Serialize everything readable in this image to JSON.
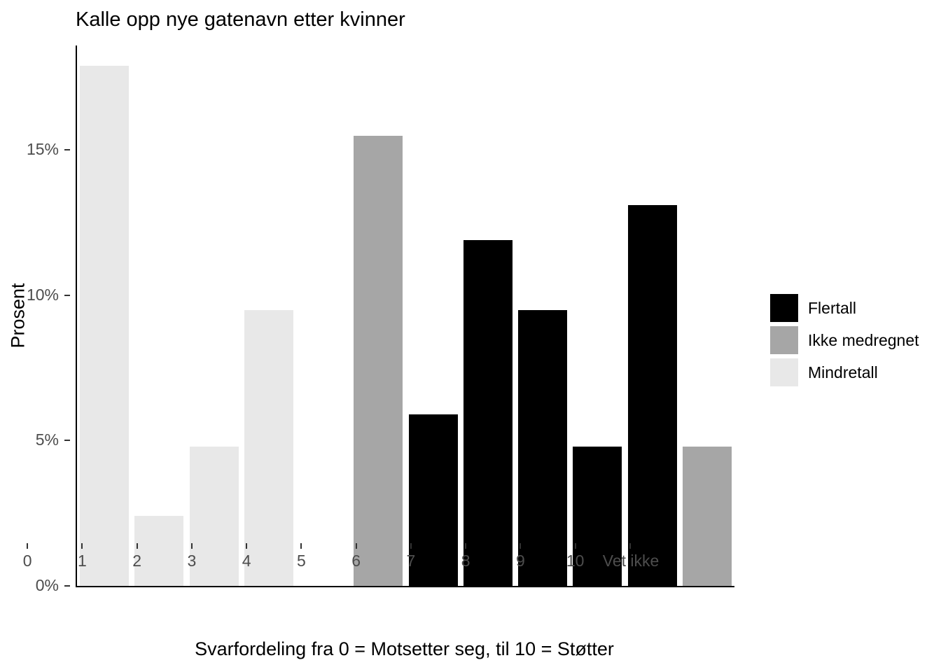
{
  "chart_data": {
    "type": "bar",
    "title": "Kalle opp nye gatenavn etter kvinner",
    "xlabel": "Svarfordeling fra 0 = Motsetter seg, til 10 = Støtter",
    "ylabel": "Prosent",
    "categories": [
      "0",
      "1",
      "2",
      "3",
      "4",
      "5",
      "6",
      "7",
      "8",
      "9",
      "10",
      "Vet ikke"
    ],
    "values": [
      17.9,
      2.4,
      4.8,
      9.5,
      0,
      15.5,
      5.9,
      11.9,
      9.5,
      4.8,
      13.1,
      4.8
    ],
    "bar_groups": [
      "Mindretall",
      "Mindretall",
      "Mindretall",
      "Mindretall",
      null,
      "Ikke medregnet",
      "Flertall",
      "Flertall",
      "Flertall",
      "Flertall",
      "Flertall",
      "Ikke medregnet"
    ],
    "legend": {
      "position": "right",
      "entries": [
        {
          "label": "Flertall",
          "color": "#000000"
        },
        {
          "label": "Ikke medregnet",
          "color": "#a6a6a6"
        },
        {
          "label": "Mindretall",
          "color": "#e8e8e8"
        }
      ]
    },
    "yticks": [
      {
        "value": 0,
        "label": "0%"
      },
      {
        "value": 5,
        "label": "5%"
      },
      {
        "value": 10,
        "label": "10%"
      },
      {
        "value": 15,
        "label": "15%"
      }
    ],
    "ylim": [
      0,
      18.6
    ],
    "grid": false,
    "background": "#ffffff"
  }
}
